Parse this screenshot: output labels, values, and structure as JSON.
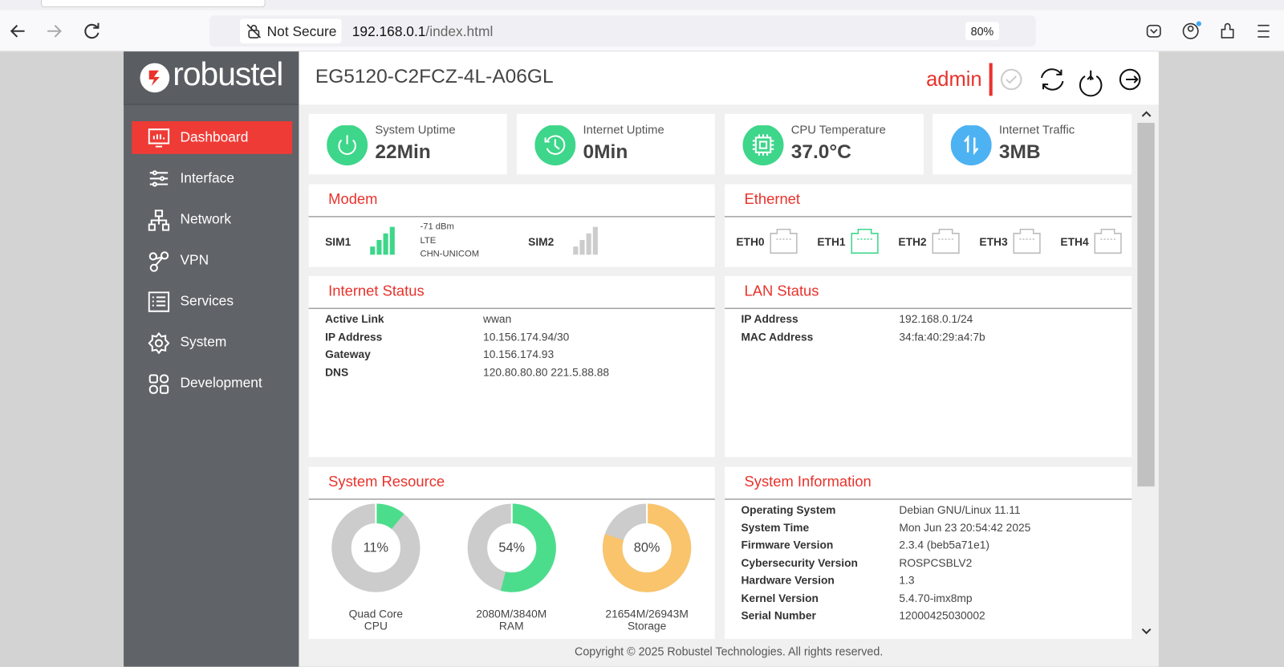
{
  "browser": {
    "security": "Not Secure",
    "url_host": "192.168.0.1",
    "url_path": "/index.html",
    "zoom": "80%"
  },
  "header": {
    "brand": "robustel",
    "device": "EG5120-C2FCZ-4L-A06GL",
    "user": "admin"
  },
  "sidebar": [
    "Dashboard",
    "Interface",
    "Network",
    "VPN",
    "Services",
    "System",
    "Development"
  ],
  "stats": [
    {
      "label": "System Uptime",
      "value": "22Min"
    },
    {
      "label": "Internet Uptime",
      "value": "0Min"
    },
    {
      "label": "CPU Temperature",
      "value": "37.0°C"
    },
    {
      "label": "Internet Traffic",
      "value": "3MB"
    }
  ],
  "modem": {
    "title": "Modem",
    "sim1": "SIM1",
    "signal": "-71 dBm",
    "network": "LTE",
    "operator": "CHN-UNICOM",
    "sim2": "SIM2"
  },
  "ethernet": {
    "title": "Ethernet",
    "ports": [
      "ETH0",
      "ETH1",
      "ETH2",
      "ETH3",
      "ETH4"
    ]
  },
  "internet_status": {
    "title": "Internet Status",
    "rows": [
      [
        "Active Link",
        "wwan"
      ],
      [
        "IP Address",
        "10.156.174.94/30"
      ],
      [
        "Gateway",
        "10.156.174.93"
      ],
      [
        "DNS",
        "120.80.80.80 221.5.88.88"
      ]
    ]
  },
  "lan_status": {
    "title": "LAN Status",
    "rows": [
      [
        "IP Address",
        "192.168.0.1/24"
      ],
      [
        "MAC Address",
        "34:fa:40:29:a4:7b"
      ]
    ]
  },
  "system_resource": {
    "title": "System Resource",
    "items": [
      {
        "value": 11,
        "value_label": "11%",
        "detail": "Quad Core",
        "name": "CPU"
      },
      {
        "value": 54,
        "value_label": "54%",
        "detail": "2080M/3840M",
        "name": "RAM"
      },
      {
        "value": 80,
        "value_label": "80%",
        "detail": "21654M/26943M",
        "name": "Storage"
      }
    ]
  },
  "system_information": {
    "title": "System Information",
    "rows": [
      [
        "Operating System",
        "Debian GNU/Linux 11.11"
      ],
      [
        "System Time",
        "Mon Jun 23 20:54:42 2025"
      ],
      [
        "Firmware Version",
        "2.3.4 (beb5a71e1)"
      ],
      [
        "Cybersecurity Version",
        "ROSPCSBLV2"
      ],
      [
        "Hardware Version",
        "1.3"
      ],
      [
        "Kernel Version",
        "5.4.70-imx8mp"
      ],
      [
        "Serial Number",
        "12000425030002"
      ]
    ]
  },
  "footer": "Copyright © 2025 Robustel Technologies. All rights reserved."
}
